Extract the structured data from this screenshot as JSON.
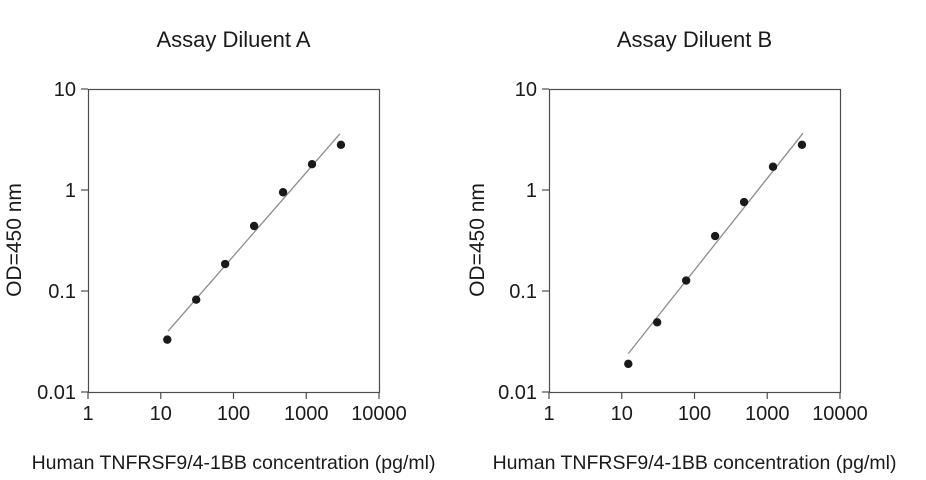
{
  "figure": {
    "background": "#ffffff",
    "colors": {
      "point": "#1a1a1a",
      "fit_line": "#8c8c8c",
      "axis": "#4d4d4d",
      "text": "#1a1a1a"
    }
  },
  "chart_data": [
    {
      "type": "scatter",
      "title": "Assay Diluent A",
      "xlabel": "Human TNFRSF9/4-1BB concentration (pg/ml)",
      "ylabel": "OD=450 nm",
      "xscale": "log",
      "yscale": "log",
      "xlim": [
        1,
        10000
      ],
      "ylim": [
        0.01,
        10
      ],
      "x_ticks": [
        "1",
        "10",
        "100",
        "1000",
        "10000"
      ],
      "y_ticks": [
        "10",
        "1",
        "0.1",
        "0.01"
      ],
      "grid": false,
      "legend_position": "none",
      "points": {
        "x": [
          12.3,
          30.7,
          76.8,
          192,
          480,
          1200,
          3000
        ],
        "y": [
          0.033,
          0.082,
          0.185,
          0.44,
          0.95,
          1.8,
          2.8
        ]
      },
      "fit_line": {
        "x": [
          12.6,
          2900
        ],
        "y": [
          0.04,
          3.6
        ]
      }
    },
    {
      "type": "scatter",
      "title": "Assay Diluent B",
      "xlabel": "Human TNFRSF9/4-1BB concentration (pg/ml)",
      "ylabel": "OD=450 nm",
      "xscale": "log",
      "yscale": "log",
      "xlim": [
        1,
        10000
      ],
      "ylim": [
        0.01,
        10
      ],
      "x_ticks": [
        "1",
        "10",
        "100",
        "1000",
        "10000"
      ],
      "y_ticks": [
        "10",
        "1",
        "0.1",
        "0.01"
      ],
      "grid": false,
      "legend_position": "none",
      "points": {
        "x": [
          12.3,
          30.7,
          76.8,
          192,
          480,
          1200,
          3000
        ],
        "y": [
          0.019,
          0.049,
          0.127,
          0.35,
          0.76,
          1.7,
          2.8
        ]
      },
      "fit_line": {
        "x": [
          12.3,
          3100
        ],
        "y": [
          0.024,
          3.65
        ]
      }
    }
  ]
}
